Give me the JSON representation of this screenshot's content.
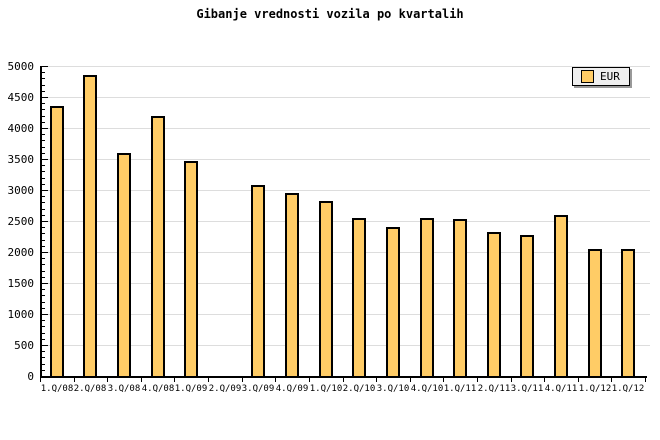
{
  "title": "Gibanje vrednosti vozila po kvartalih",
  "legend": {
    "label": "EUR"
  },
  "colors": {
    "bar_fill": "#FFCC66",
    "bar_border": "#000000",
    "grid": "#DDDDDD",
    "axis": "#000000",
    "background": "#FFFFFF",
    "legend_bg": "#EFEFEF",
    "legend_shadow": "#999999"
  },
  "chart_data": {
    "type": "bar",
    "title": "Gibanje vrednosti vozila po kvartalih",
    "series_name": "EUR",
    "categories": [
      "1.Q/08",
      "2.Q/08",
      "3.Q/08",
      "4.Q/08",
      "1.Q/09",
      "2.Q/09",
      "3.Q/09",
      "4.Q/09",
      "1.Q/10",
      "2.Q/10",
      "3.Q/10",
      "4.Q/10",
      "1.Q/11",
      "2.Q/11",
      "3.Q/11",
      "4.Q/11",
      "1.Q/12",
      "1.Q/12"
    ],
    "values": [
      4350,
      4850,
      3600,
      4200,
      3475,
      null,
      3075,
      2950,
      2825,
      2550,
      2400,
      2550,
      2525,
      2325,
      2275,
      2600,
      2050,
      2050
    ],
    "xlabel": "",
    "ylabel": "",
    "ylim": [
      0,
      5000
    ],
    "yticks": [
      0,
      500,
      1000,
      1500,
      2000,
      2500,
      3000,
      3500,
      4000,
      4500,
      5000
    ],
    "minor_tick_step": 100,
    "grid": true,
    "legend_position": "top-right"
  }
}
